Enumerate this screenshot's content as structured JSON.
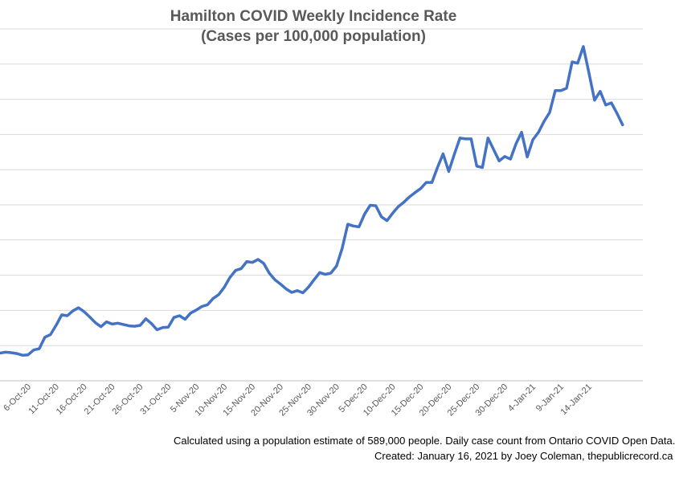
{
  "chart_data": {
    "type": "line",
    "title": "Hamilton COVID Weekly Incidence Rate",
    "subtitle": "(Cases per 100,000 population)",
    "xlabel": "",
    "ylabel": "",
    "grid": true,
    "legend": "none",
    "x_tick_labels": [
      "6-Oct-20",
      "11-Oct-20",
      "16-Oct-20",
      "21-Oct-20",
      "26-Oct-20",
      "31-Oct-20",
      "5-Nov-20",
      "10-Nov-20",
      "15-Nov-20",
      "20-Nov-20",
      "25-Nov-20",
      "30-Nov-20",
      "5-Dec-20",
      "10-Dec-20",
      "15-Dec-20",
      "20-Dec-20",
      "25-Dec-20",
      "30-Dec-20",
      "4-Jan-21",
      "9-Jan-21",
      "14-Jan-21"
    ],
    "series": [
      {
        "color": "#4472C4",
        "values": [
          6.3,
          6.5,
          6.4,
          6.2,
          5.8,
          5.9,
          7.0,
          7.3,
          9.9,
          10.5,
          12.6,
          15.0,
          14.8,
          15.9,
          16.6,
          15.7,
          14.5,
          13.2,
          12.3,
          13.4,
          12.9,
          13.1,
          12.8,
          12.5,
          12.4,
          12.6,
          14.1,
          13.0,
          11.6,
          12.1,
          12.2,
          14.4,
          14.8,
          14.0,
          15.4,
          16.1,
          16.9,
          17.3,
          18.7,
          19.6,
          21.3,
          23.5,
          25.1,
          25.5,
          27.1,
          26.9,
          27.6,
          26.7,
          24.5,
          23.0,
          22.0,
          20.9,
          20.1,
          20.5,
          20.0,
          21.3,
          23.0,
          24.6,
          24.2,
          24.5,
          26.1,
          30.1,
          35.6,
          35.2,
          35.0,
          37.9,
          39.9,
          39.8,
          37.3,
          36.4,
          38.1,
          39.6,
          40.6,
          41.8,
          42.8,
          43.7,
          45.1,
          45.1,
          48.5,
          51.6,
          47.6,
          51.5,
          55.2,
          55.0,
          55.0,
          48.8,
          48.5,
          55.2,
          52.6,
          50.0,
          51.0,
          50.4,
          53.9,
          56.5,
          50.9,
          54.8,
          56.5,
          59.0,
          61.0,
          66.0,
          66.0,
          66.5,
          72.5,
          72.2,
          76.0,
          70.0,
          63.8,
          65.8,
          62.7,
          63.2,
          60.8,
          58.2
        ]
      }
    ]
  },
  "captions": {
    "line1": "Calculated using a population estimate of 589,000 people. Daily case count from Ontario COVID Open Data.",
    "line2": "Created: January 16, 2021 by Joey Coleman, thepublicrecord.ca"
  }
}
